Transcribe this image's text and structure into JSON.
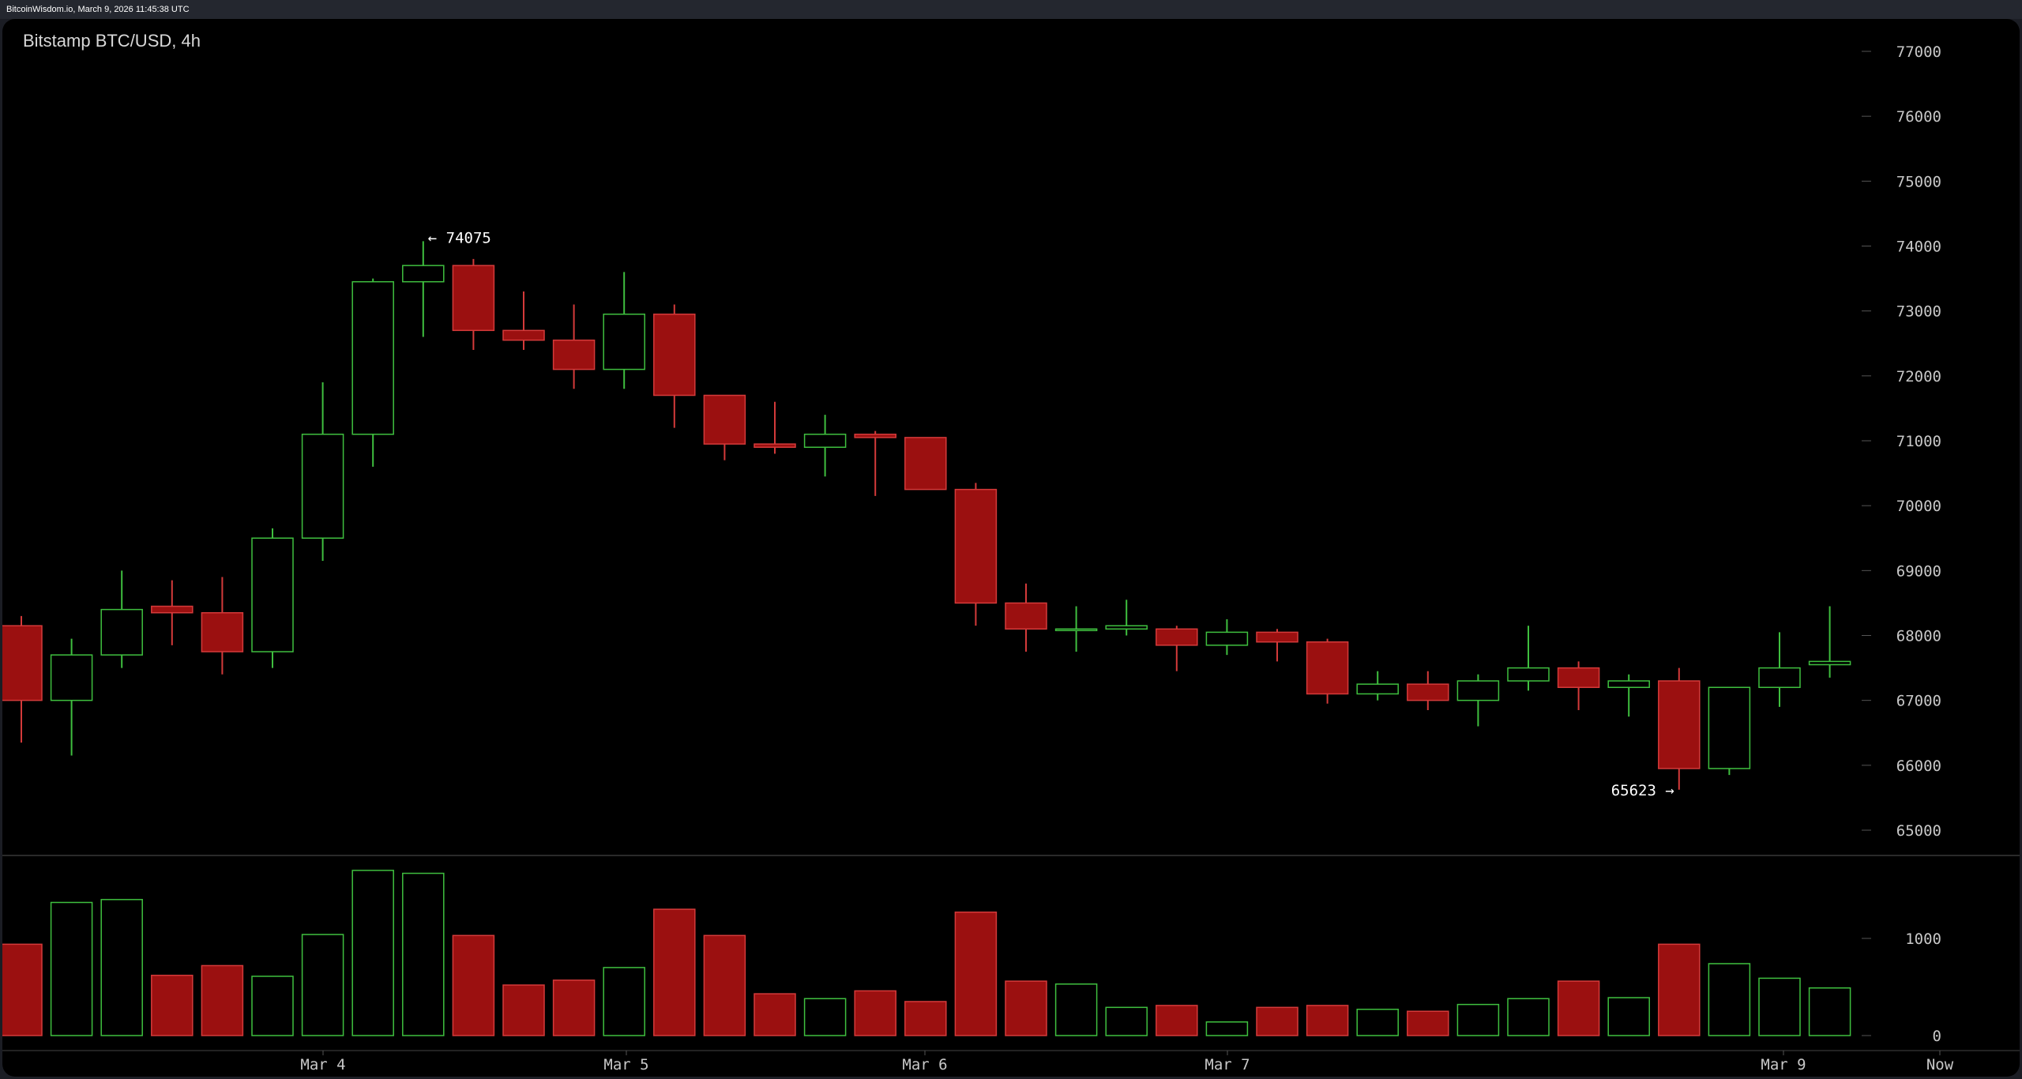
{
  "header": {
    "caption": "BitcoinWisdom.io, March 9, 2026 11:45:38 UTC"
  },
  "chart_data": {
    "type": "candlestick",
    "title": "Bitstamp BTC/USD, 4h",
    "price_axis": {
      "ticks": [
        "77000",
        "76000",
        "75000",
        "74000",
        "73000",
        "72000",
        "71000",
        "70000",
        "69000",
        "68000",
        "67000",
        "66000",
        "65000"
      ],
      "range": [
        64600,
        77500
      ]
    },
    "volume_axis": {
      "ticks": [
        "1000",
        "0"
      ],
      "range": [
        0,
        1700
      ]
    },
    "x_axis": {
      "labels": [
        "Mar 4",
        "Mar 5",
        "Mar 6",
        "Mar 7",
        "Mar 9",
        "Now"
      ]
    },
    "annotations": {
      "high_label": "← 74075",
      "low_label": "65623 →",
      "high_value": 74075,
      "low_value": 65623
    },
    "colors": {
      "up": "#3fbf3f",
      "down": "#9b1010",
      "down_border": "#d43a3a",
      "grid_tick": "#555555"
    },
    "candles": [
      {
        "open": 68150,
        "high": 68300,
        "low": 66350,
        "close": 67000,
        "volume": 940
      },
      {
        "open": 67000,
        "high": 67950,
        "low": 66150,
        "close": 67700,
        "volume": 1370
      },
      {
        "open": 67700,
        "high": 69000,
        "low": 67500,
        "close": 68400,
        "volume": 1400
      },
      {
        "open": 68450,
        "high": 68850,
        "low": 67850,
        "close": 68350,
        "volume": 620
      },
      {
        "open": 68350,
        "high": 68900,
        "low": 67400,
        "close": 67750,
        "volume": 720
      },
      {
        "open": 67750,
        "high": 69650,
        "low": 67500,
        "close": 69500,
        "volume": 610
      },
      {
        "open": 69500,
        "high": 71900,
        "low": 69150,
        "close": 71100,
        "volume": 1040
      },
      {
        "open": 71100,
        "high": 73500,
        "low": 70600,
        "close": 73450,
        "volume": 1700
      },
      {
        "open": 73450,
        "high": 74075,
        "low": 72600,
        "close": 73700,
        "volume": 1670
      },
      {
        "open": 73700,
        "high": 73800,
        "low": 72400,
        "close": 72700,
        "volume": 1030
      },
      {
        "open": 72700,
        "high": 73300,
        "low": 72400,
        "close": 72550,
        "volume": 520
      },
      {
        "open": 72550,
        "high": 73100,
        "low": 71800,
        "close": 72100,
        "volume": 570
      },
      {
        "open": 72100,
        "high": 73600,
        "low": 71800,
        "close": 72950,
        "volume": 700
      },
      {
        "open": 72950,
        "high": 73100,
        "low": 71200,
        "close": 71700,
        "volume": 1300
      },
      {
        "open": 71700,
        "high": 71700,
        "low": 70700,
        "close": 70950,
        "volume": 1030
      },
      {
        "open": 70950,
        "high": 71600,
        "low": 70800,
        "close": 70900,
        "volume": 430
      },
      {
        "open": 70900,
        "high": 71400,
        "low": 70450,
        "close": 71100,
        "volume": 380
      },
      {
        "open": 71100,
        "high": 71150,
        "low": 70150,
        "close": 71050,
        "volume": 460
      },
      {
        "open": 71050,
        "high": 71050,
        "low": 70250,
        "close": 70250,
        "volume": 350
      },
      {
        "open": 70250,
        "high": 70350,
        "low": 68150,
        "close": 68500,
        "volume": 1270
      },
      {
        "open": 68500,
        "high": 68800,
        "low": 67750,
        "close": 68100,
        "volume": 560
      },
      {
        "open": 68100,
        "high": 68450,
        "low": 67750,
        "close": 68100,
        "volume": 530
      },
      {
        "open": 68100,
        "high": 68550,
        "low": 68000,
        "close": 68150,
        "volume": 290
      },
      {
        "open": 68100,
        "high": 68150,
        "low": 67450,
        "close": 67850,
        "volume": 310
      },
      {
        "open": 67850,
        "high": 68250,
        "low": 67700,
        "close": 68050,
        "volume": 140
      },
      {
        "open": 68050,
        "high": 68100,
        "low": 67600,
        "close": 67900,
        "volume": 290
      },
      {
        "open": 67900,
        "high": 67950,
        "low": 66950,
        "close": 67100,
        "volume": 310
      },
      {
        "open": 67100,
        "high": 67450,
        "low": 67000,
        "close": 67250,
        "volume": 270
      },
      {
        "open": 67250,
        "high": 67450,
        "low": 66850,
        "close": 67000,
        "volume": 250
      },
      {
        "open": 67000,
        "high": 67400,
        "low": 66600,
        "close": 67300,
        "volume": 320
      },
      {
        "open": 67300,
        "high": 68150,
        "low": 67150,
        "close": 67500,
        "volume": 380
      },
      {
        "open": 67500,
        "high": 67600,
        "low": 66850,
        "close": 67200,
        "volume": 560
      },
      {
        "open": 67200,
        "high": 67400,
        "low": 66750,
        "close": 67300,
        "volume": 390
      },
      {
        "open": 67300,
        "high": 67500,
        "low": 65623,
        "close": 65950,
        "volume": 940
      },
      {
        "open": 65950,
        "high": 67200,
        "low": 65850,
        "close": 67200,
        "volume": 740
      },
      {
        "open": 67200,
        "high": 68050,
        "low": 66900,
        "close": 67500,
        "volume": 590
      },
      {
        "open": 67550,
        "high": 68450,
        "low": 67350,
        "close": 67600,
        "volume": 490
      }
    ]
  }
}
